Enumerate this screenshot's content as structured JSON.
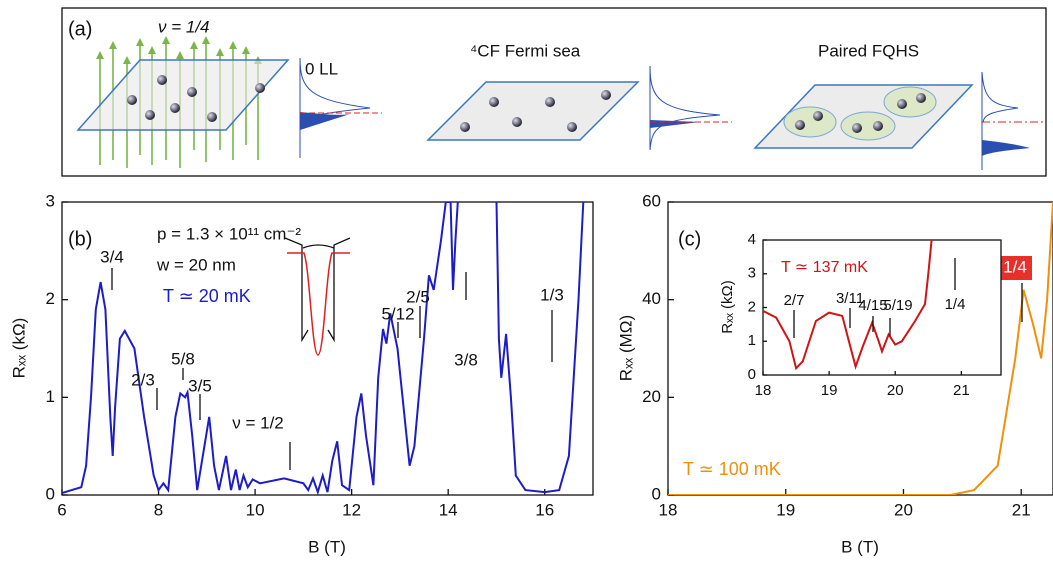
{
  "diagram": {
    "label": "(a)",
    "filling": "ν = 1/4",
    "ll": "0 LL",
    "sea": "⁴CF Fermi sea",
    "paired": "Paired FQHS"
  },
  "chart_data": [
    {
      "type": "line",
      "panel_label": "(b)",
      "xlabel": "B (T)",
      "ylabel": "Rₓₓ (kΩ)",
      "xlim": [
        6,
        17
      ],
      "ylim": [
        0,
        3
      ],
      "xticks": [
        6,
        8,
        10,
        12,
        14,
        16
      ],
      "yticks": [
        0,
        1,
        2,
        3
      ],
      "annotations": [
        "p = 1.3 × 10¹¹ cm⁻²",
        "w = 20 nm",
        "ν = 1/2",
        "3/4",
        "2/3",
        "5/8",
        "3/5",
        "5/12",
        "2/5",
        "3/8",
        "1/3"
      ],
      "temperature": "T ≃ 20 mK",
      "x": [
        6.0,
        6.2,
        6.4,
        6.5,
        6.6,
        6.7,
        6.8,
        6.9,
        7.0,
        7.05,
        7.1,
        7.2,
        7.3,
        7.5,
        7.7,
        7.9,
        8.0,
        8.1,
        8.2,
        8.35,
        8.45,
        8.55,
        8.6,
        8.7,
        8.8,
        8.95,
        9.05,
        9.15,
        9.25,
        9.4,
        9.5,
        9.6,
        9.68,
        9.76,
        9.85,
        9.95,
        10.1,
        10.6,
        11.0,
        11.1,
        11.2,
        11.3,
        11.4,
        11.5,
        11.6,
        11.7,
        11.8,
        11.95,
        12.1,
        12.2,
        12.3,
        12.45,
        12.55,
        12.65,
        12.72,
        12.8,
        12.95,
        13.2,
        13.3,
        13.5,
        13.6,
        13.7,
        13.85,
        13.95,
        14.05,
        14.1,
        14.15,
        14.2,
        14.6,
        15.0,
        15.05,
        15.1,
        15.2,
        15.3,
        15.4,
        15.6,
        16.0,
        16.3,
        16.5,
        16.7,
        16.8
      ],
      "series": [
        {
          "color": "#1c1cc8",
          "values": [
            0.02,
            0.05,
            0.08,
            0.3,
            1.0,
            1.9,
            2.18,
            1.9,
            0.8,
            0.4,
            0.9,
            1.6,
            1.68,
            1.5,
            0.8,
            0.2,
            0.05,
            0.12,
            0.05,
            0.8,
            1.04,
            1.0,
            1.05,
            0.6,
            0.05,
            0.5,
            0.8,
            0.3,
            0.05,
            0.4,
            0.05,
            0.26,
            0.05,
            0.2,
            0.08,
            0.16,
            0.12,
            0.17,
            0.12,
            0.05,
            0.17,
            0.03,
            0.2,
            0.03,
            0.35,
            0.55,
            0.1,
            0.05,
            0.8,
            1.04,
            0.6,
            0.1,
            1.2,
            1.7,
            1.55,
            1.86,
            1.5,
            0.3,
            0.5,
            1.6,
            2.25,
            2.1,
            2.6,
            3.0,
            3.0,
            2.1,
            2.6,
            3.0,
            null,
            3.0,
            1.6,
            1.2,
            1.65,
            1.0,
            0.2,
            0.05,
            0.03,
            0.05,
            0.4,
            2.0,
            3.0
          ]
        }
      ]
    },
    {
      "type": "line",
      "panel_label": "(c)",
      "xlabel": "B (T)",
      "ylabel": "Rₓₓ (MΩ)",
      "xlim": [
        18,
        21.27
      ],
      "ylim": [
        0,
        60
      ],
      "xticks": [
        18,
        19,
        20,
        21
      ],
      "yticks": [
        0,
        20,
        40,
        60
      ],
      "annotations": [
        "1/4"
      ],
      "temperature": "T ≃ 100 mK",
      "x": [
        18.0,
        20.4,
        20.6,
        20.8,
        20.95,
        21.02,
        21.1,
        21.17,
        21.22,
        21.27
      ],
      "series": [
        {
          "color": "#f0900a",
          "values": [
            0,
            0,
            1,
            6,
            28,
            42,
            35,
            28,
            40,
            60
          ]
        }
      ]
    },
    {
      "type": "line",
      "xlabel": "",
      "ylabel": "Rₓₓ (kΩ)",
      "xlim": [
        18,
        21.6
      ],
      "ylim": [
        0,
        4
      ],
      "xticks": [
        18,
        19,
        20,
        21
      ],
      "yticks": [
        0,
        1,
        2,
        3,
        4
      ],
      "annotations": [
        "2/7",
        "3/11",
        "4/15",
        "5/19",
        "1/4"
      ],
      "temperature": "T ≃ 137 mK",
      "x": [
        18.0,
        18.2,
        18.4,
        18.5,
        18.6,
        18.8,
        19.0,
        19.2,
        19.3,
        19.4,
        19.5,
        19.65,
        19.75,
        19.8,
        19.9,
        20.0,
        20.1,
        20.3,
        20.45,
        20.5,
        20.55
      ],
      "series": [
        {
          "color": "#d01414",
          "values": [
            1.9,
            1.7,
            1.0,
            0.2,
            0.4,
            1.6,
            1.85,
            1.75,
            1.0,
            0.25,
            0.8,
            1.55,
            1.0,
            0.7,
            1.2,
            0.9,
            1.0,
            1.6,
            2.1,
            3.0,
            4.0
          ]
        }
      ]
    }
  ]
}
